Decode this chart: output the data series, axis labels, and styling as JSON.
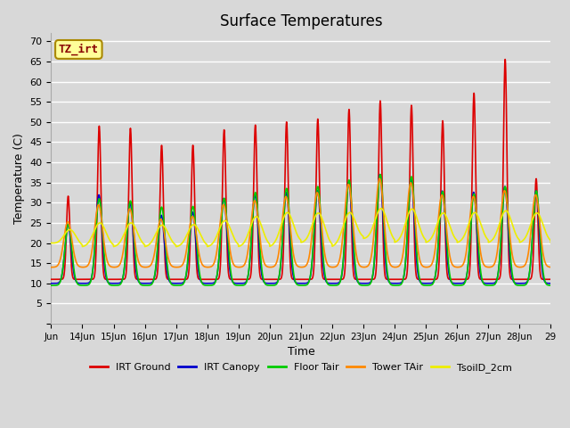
{
  "title": "Surface Temperatures",
  "xlabel": "Time",
  "ylabel": "Temperature (C)",
  "ylim": [
    0,
    72
  ],
  "yticks": [
    0,
    5,
    10,
    15,
    20,
    25,
    30,
    35,
    40,
    45,
    50,
    55,
    60,
    65,
    70
  ],
  "background_color": "#d8d8d8",
  "plot_bg_color": "#d8d8d8",
  "grid_color": "#ffffff",
  "annotation_text": "TZ_irt",
  "annotation_bg": "#ffff99",
  "annotation_border": "#aa8800",
  "series": [
    {
      "label": "IRT Ground",
      "color": "#dd0000",
      "lw": 1.2
    },
    {
      "label": "IRT Canopy",
      "color": "#0000cc",
      "lw": 1.2
    },
    {
      "label": "Floor Tair",
      "color": "#00cc00",
      "lw": 1.2
    },
    {
      "label": "Tower TAir",
      "color": "#ff8800",
      "lw": 1.2
    },
    {
      "label": "TsoilD_2cm",
      "color": "#eeee00",
      "lw": 1.2
    }
  ],
  "x_start_day": 13.0,
  "x_end_day": 29.0,
  "num_points": 3200,
  "xtick_days": [
    13,
    14,
    15,
    16,
    17,
    18,
    19,
    20,
    21,
    22,
    23,
    24,
    25,
    26,
    27,
    28,
    29
  ],
  "xtick_labels": [
    "Jun",
    "14Jun",
    "15Jun",
    "16Jun",
    "17Jun",
    "18Jun",
    "19Jun",
    "20Jun",
    "21Jun",
    "22Jun",
    "23Jun",
    "24Jun",
    "25Jun",
    "26Jun",
    "27Jun",
    "28Jun",
    "29"
  ]
}
